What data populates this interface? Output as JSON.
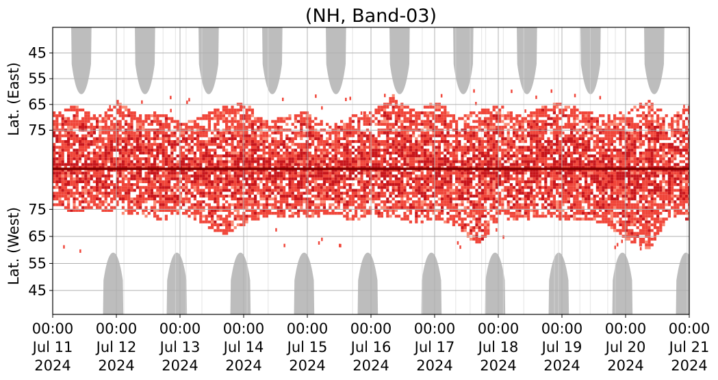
{
  "chart_data": {
    "type": "heatmap",
    "title": "(NH, Band-03)",
    "x_ticks": [
      {
        "time": "00:00",
        "date": "Jul 11",
        "year": "2024"
      },
      {
        "time": "00:00",
        "date": "Jul 12",
        "year": "2024"
      },
      {
        "time": "00:00",
        "date": "Jul 13",
        "year": "2024"
      },
      {
        "time": "00:00",
        "date": "Jul 14",
        "year": "2024"
      },
      {
        "time": "00:00",
        "date": "Jul 15",
        "year": "2024"
      },
      {
        "time": "00:00",
        "date": "Jul 16",
        "year": "2024"
      },
      {
        "time": "00:00",
        "date": "Jul 17",
        "year": "2024"
      },
      {
        "time": "00:00",
        "date": "Jul 18",
        "year": "2024"
      },
      {
        "time": "00:00",
        "date": "Jul 19",
        "year": "2024"
      },
      {
        "time": "00:00",
        "date": "Jul 20",
        "year": "2024"
      },
      {
        "time": "00:00",
        "date": "Jul 21",
        "year": "2024"
      }
    ],
    "x_range": [
      "2024-07-11 00:00",
      "2024-07-21 00:00"
    ],
    "panels": [
      {
        "ylabel": "Lat. (East)",
        "y_ticks": [
          45,
          55,
          65,
          75
        ],
        "y_range": [
          40,
          90
        ],
        "orientation": "pole at bottom"
      },
      {
        "ylabel": "Lat. (West)",
        "y_ticks": [
          75,
          65,
          55,
          45
        ],
        "y_range": [
          90,
          40
        ],
        "orientation": "pole at top"
      }
    ],
    "grid": true,
    "colors": {
      "no_data": "#bdbdbd",
      "high": "#c8161c",
      "medium": "#f0463a",
      "low": "#fb8a74",
      "pole_line": "#7f0000"
    },
    "no_data_regions": {
      "east": [
        {
          "day": 0.45,
          "lowest_lat": 61
        },
        {
          "day": 1.45,
          "lowest_lat": 61
        },
        {
          "day": 2.45,
          "lowest_lat": 61
        },
        {
          "day": 3.45,
          "lowest_lat": 61
        },
        {
          "day": 4.45,
          "lowest_lat": 61
        },
        {
          "day": 5.45,
          "lowest_lat": 61
        },
        {
          "day": 6.45,
          "lowest_lat": 61
        },
        {
          "day": 7.45,
          "lowest_lat": 61
        },
        {
          "day": 8.45,
          "lowest_lat": 61
        },
        {
          "day": 9.45,
          "lowest_lat": 61
        }
      ],
      "west": [
        {
          "day": 0.95,
          "lowest_lat": 59
        },
        {
          "day": 1.95,
          "lowest_lat": 59
        },
        {
          "day": 2.95,
          "lowest_lat": 59
        },
        {
          "day": 3.95,
          "lowest_lat": 59
        },
        {
          "day": 4.95,
          "lowest_lat": 59
        },
        {
          "day": 5.95,
          "lowest_lat": 59
        },
        {
          "day": 6.95,
          "lowest_lat": 59
        },
        {
          "day": 7.95,
          "lowest_lat": 59
        },
        {
          "day": 8.95,
          "lowest_lat": 59
        },
        {
          "day": 9.95,
          "lowest_lat": 59
        }
      ]
    },
    "activity_extent": {
      "east_min_lat": [
        68,
        66,
        70,
        64,
        70,
        68,
        73,
        70,
        66,
        65,
        72,
        70,
        68,
        74,
        70,
        68,
        62,
        68,
        64,
        70,
        68,
        66,
        70,
        66,
        65,
        68,
        70,
        68,
        64,
        70,
        66
      ],
      "west_min_lat": [
        77,
        74,
        76,
        73,
        74,
        71,
        74,
        70,
        66,
        70,
        73,
        72,
        72,
        74,
        71,
        73,
        73,
        70,
        72,
        69,
        62,
        72,
        71,
        73,
        71,
        72,
        70,
        64,
        60,
        73,
        71
      ]
    }
  }
}
